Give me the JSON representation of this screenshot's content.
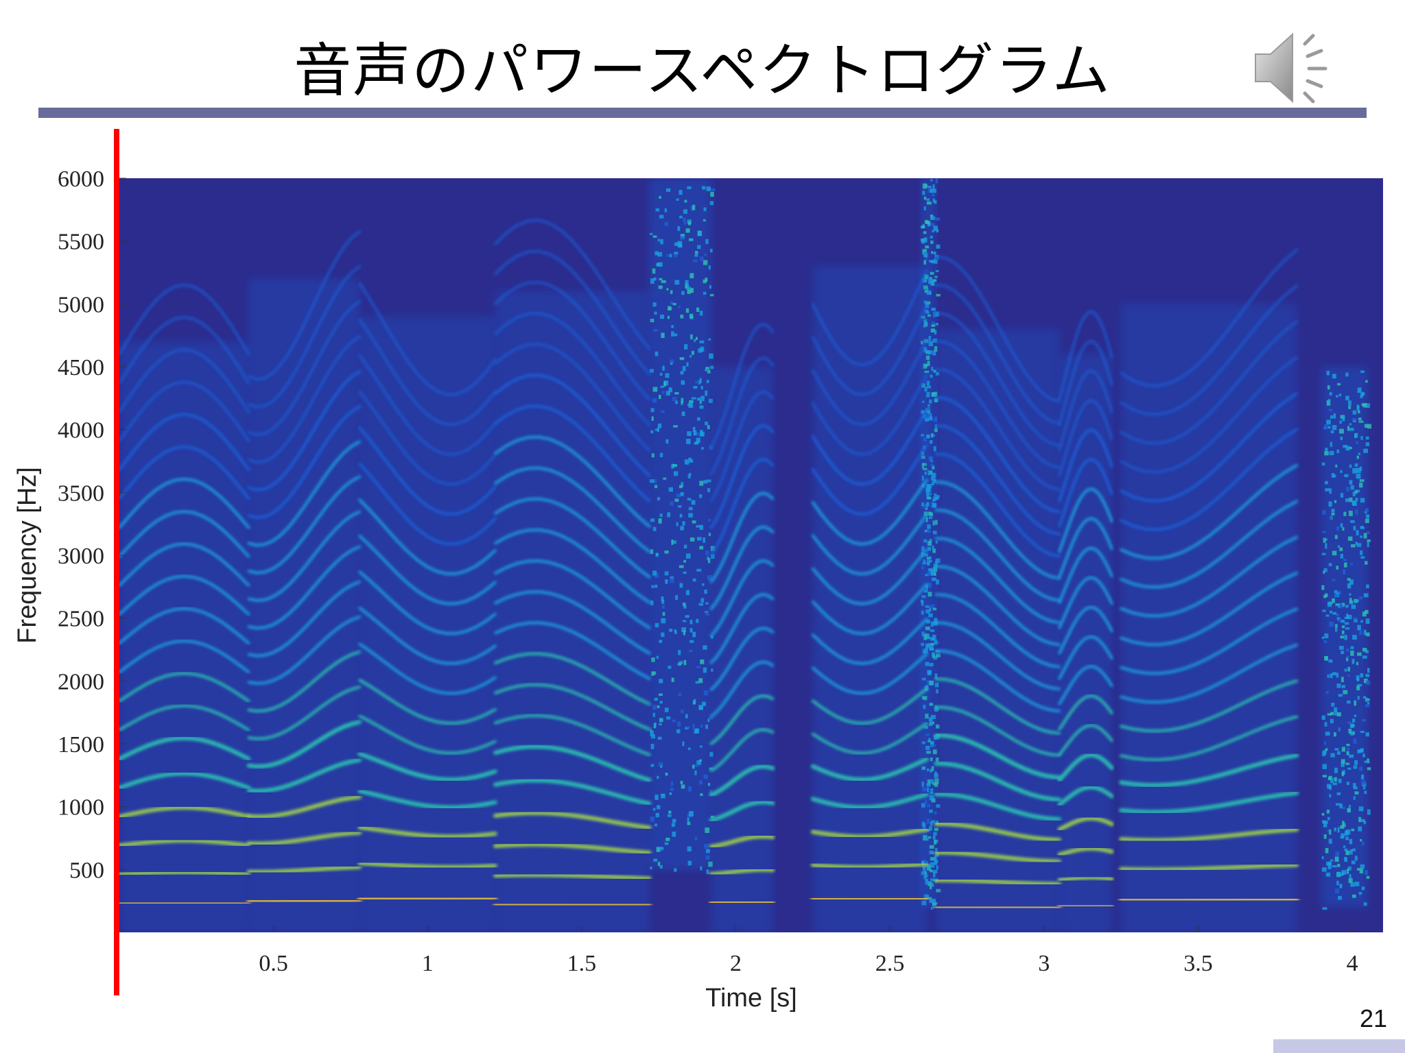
{
  "slide": {
    "title": "音声のパワースペクトログラム",
    "page_number": "21",
    "speaker_icon": "speaker-icon",
    "rule_color": "#676a9a",
    "marker_color": "#ff0000"
  },
  "chart_data": {
    "type": "heatmap",
    "title": "",
    "xlabel": "Time [s]",
    "ylabel": "Frequency [Hz]",
    "xlim": [
      0,
      4.1
    ],
    "ylim": [
      0,
      6000
    ],
    "xticks": [
      0.5,
      1,
      1.5,
      2,
      2.5,
      3,
      3.5,
      4
    ],
    "xtick_labels": [
      "0.5",
      "1",
      "1.5",
      "2",
      "2.5",
      "3",
      "3.5",
      "4"
    ],
    "yticks": [
      500,
      1000,
      1500,
      2000,
      2500,
      3000,
      3500,
      4000,
      4500,
      5000,
      5500,
      6000
    ],
    "ytick_labels": [
      "500",
      "1000",
      "1500",
      "2000",
      "2500",
      "3000",
      "3500",
      "4000",
      "4500",
      "5000",
      "5500",
      "6000"
    ],
    "grid": false,
    "colormap": [
      "#2a2f8c",
      "#1f5fd6",
      "#1aa0e0",
      "#2cc4b0",
      "#9fd24a",
      "#f5c531"
    ],
    "background_color": "#2b2c8e",
    "voiced_segments": [
      {
        "t0": 0.0,
        "t1": 0.42,
        "f0": 230,
        "top": 4700
      },
      {
        "t0": 0.42,
        "t1": 0.78,
        "f0": 250,
        "top": 5200
      },
      {
        "t0": 0.78,
        "t1": 1.22,
        "f0": 270,
        "top": 4900
      },
      {
        "t0": 1.22,
        "t1": 1.72,
        "f0": 220,
        "top": 5100
      },
      {
        "t0": 1.92,
        "t1": 2.12,
        "f0": 240,
        "top": 4500
      },
      {
        "t0": 2.25,
        "t1": 2.62,
        "f0": 270,
        "top": 5300
      },
      {
        "t0": 2.65,
        "t1": 3.05,
        "f0": 200,
        "top": 4800
      },
      {
        "t0": 3.05,
        "t1": 3.22,
        "f0": 210,
        "top": 4600
      },
      {
        "t0": 3.25,
        "t1": 3.82,
        "f0": 260,
        "top": 5000
      }
    ],
    "noise_bands": [
      {
        "t0": 1.72,
        "t1": 1.92,
        "fmin": 500,
        "fmax": 6000
      },
      {
        "t0": 2.6,
        "t1": 2.65,
        "fmin": 200,
        "fmax": 6000
      },
      {
        "t0": 3.9,
        "t1": 4.05,
        "fmin": 200,
        "fmax": 4500
      }
    ]
  }
}
